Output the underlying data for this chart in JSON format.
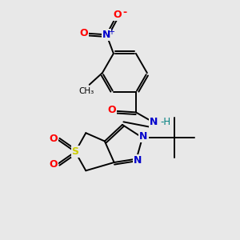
{
  "bg_color": "#e8e8e8",
  "bond_color": "#000000",
  "atom_colors": {
    "O": "#ff0000",
    "N": "#0000cc",
    "S": "#cccc00",
    "H": "#008080",
    "C": "#000000"
  },
  "figsize": [
    3.0,
    3.0
  ],
  "dpi": 100
}
